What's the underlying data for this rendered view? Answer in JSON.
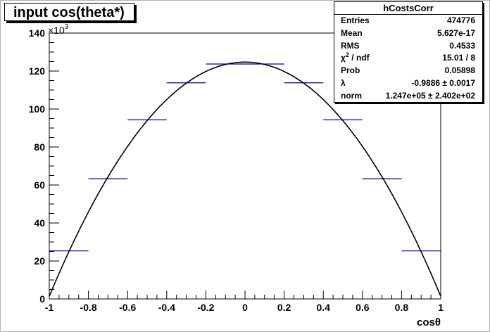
{
  "canvas_title": "input cos(theta*)",
  "stats_box": {
    "title": "hCostsCorr",
    "rows": [
      {
        "key": "Entries",
        "value": "474776"
      },
      {
        "key": "Mean",
        "value": "5.627e-17"
      },
      {
        "key": "RMS",
        "value": "0.4533"
      },
      {
        "key_html": "χ<sup>2</sup> / ndf",
        "key": "χ2 / ndf",
        "value": "15.01 / 8"
      },
      {
        "key": "Prob",
        "value": "0.05898"
      },
      {
        "key": "λ",
        "value": "-0.9886 ± 0.0017"
      },
      {
        "key": "norm",
        "value": "1.247e+05 ± 2.402e+02"
      }
    ]
  },
  "chart_data": {
    "type": "histogram_with_fit",
    "xlabel": "cosθ",
    "y_scale_label": "×10³",
    "xlim": [
      -1,
      1
    ],
    "ylim": [
      0,
      140
    ],
    "x_ticks": [
      -1,
      -0.8,
      -0.6,
      -0.4,
      -0.2,
      0,
      0.2,
      0.4,
      0.6,
      0.8,
      1
    ],
    "y_ticks": [
      0,
      20,
      40,
      60,
      80,
      100,
      120,
      140
    ],
    "bin_edges": [
      -1,
      -0.8,
      -0.6,
      -0.4,
      -0.2,
      0,
      0.2,
      0.4,
      0.6,
      0.8,
      1
    ],
    "bin_values": [
      25.3,
      63.3,
      94.3,
      113.8,
      123.7,
      123.7,
      113.8,
      94.3,
      63.3,
      25.3
    ],
    "fit": {
      "function": "norm*(1+lambda*x^2)",
      "norm": 124.7,
      "lambda": -0.9886
    },
    "hist_color": "#00008b",
    "fit_color": "#000000"
  }
}
